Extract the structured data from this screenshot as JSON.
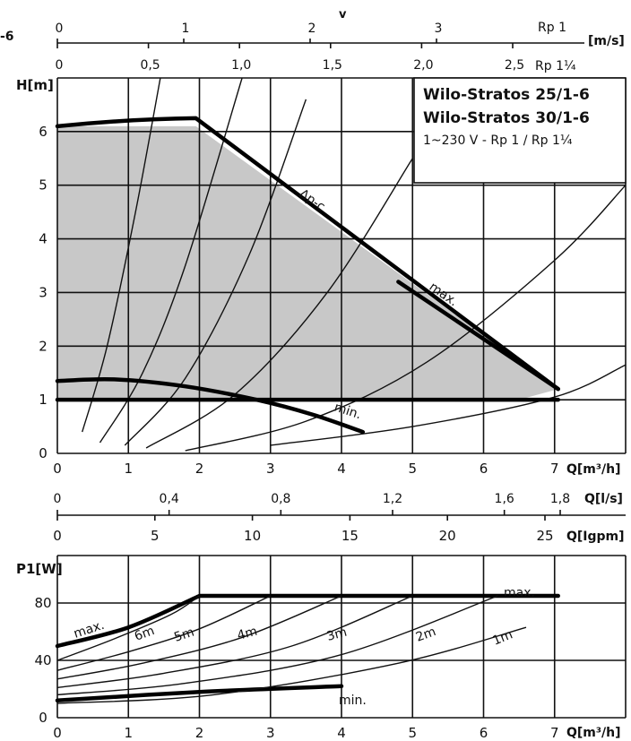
{
  "page_title_fragment": "-6",
  "velocity": {
    "symbol": "v",
    "unit": "[m/s]",
    "rp1": {
      "label": "Rp 1",
      "ticks": [
        "0",
        "1",
        "2",
        "3"
      ],
      "values": [
        0,
        1,
        2,
        3
      ]
    },
    "rp114": {
      "label": "Rp 1¼",
      "ticks": [
        "0",
        "0,5",
        "1,0",
        "1,5",
        "2,0",
        "2,5"
      ],
      "values": [
        0,
        0.5,
        1.0,
        1.5,
        2.0,
        2.5
      ]
    }
  },
  "legend_box": {
    "line1": "Wilo-Stratos 25/1-6",
    "line2": "Wilo-Stratos 30/1-6",
    "line3": "1~230 V - Rp 1 / Rp 1¼"
  },
  "flow_ls_axis": {
    "unit": "Q[l/s]",
    "ticks": [
      "0",
      "0,4",
      "0,8",
      "1,2",
      "1,6",
      "1,8"
    ],
    "values": [
      0,
      0.4,
      0.8,
      1.2,
      1.6,
      1.8
    ]
  },
  "flow_igpm_axis": {
    "unit": "Q[Igpm]",
    "ticks": [
      "0",
      "5",
      "10",
      "15",
      "20",
      "25"
    ],
    "values": [
      0,
      5,
      10,
      15,
      20,
      25
    ]
  },
  "chart_data": [
    {
      "type": "line",
      "xlabel": "Q[m³/h]",
      "ylabel": "H[m]",
      "xlim": [
        0,
        8
      ],
      "ylim": [
        0,
        7
      ],
      "x_ticks": [
        "0",
        "1",
        "2",
        "3",
        "4",
        "5",
        "6",
        "7"
      ],
      "y_ticks": [
        "0",
        "1",
        "2",
        "3",
        "4",
        "5",
        "6"
      ],
      "grid": true,
      "shaded_operating_area": [
        [
          0,
          6.1
        ],
        [
          1.95,
          6.1
        ],
        [
          7.05,
          1.2
        ],
        [
          6.5,
          1.0
        ],
        [
          0,
          1.0
        ]
      ],
      "series": [
        {
          "name": "Δp-c",
          "x": [
            0,
            1.0,
            1.95,
            3.5,
            7.05
          ],
          "y": [
            6.1,
            6.2,
            6.25,
            4.6,
            1.2
          ]
        },
        {
          "name": "max.",
          "x": [
            4.8,
            7.05
          ],
          "y": [
            3.2,
            1.2
          ]
        },
        {
          "name": "min.",
          "x": [
            0,
            0.8,
            1.8,
            2.8,
            3.6,
            4.3
          ],
          "y": [
            1.35,
            1.38,
            1.25,
            1.0,
            0.72,
            0.4
          ]
        },
        {
          "name": "",
          "x": [
            0,
            7.05
          ],
          "y": [
            1.0,
            1.0
          ]
        }
      ],
      "system_curves": [
        {
          "x": [
            0.35,
            0.7,
            1.1,
            1.45
          ],
          "y": [
            0.4,
            2.0,
            4.5,
            7.0
          ]
        },
        {
          "x": [
            0.6,
            1.2,
            1.8,
            2.6
          ],
          "y": [
            0.2,
            1.5,
            3.5,
            7.0
          ]
        },
        {
          "x": [
            0.95,
            1.8,
            2.7,
            3.5
          ],
          "y": [
            0.15,
            1.4,
            3.7,
            6.6
          ]
        },
        {
          "x": [
            1.25,
            2.5,
            3.8,
            5.0
          ],
          "y": [
            0.1,
            1.1,
            3.0,
            5.5
          ]
        },
        {
          "x": [
            1.8,
            3.5,
            5.2,
            7.0,
            8.0
          ],
          "y": [
            0.05,
            0.6,
            1.7,
            3.6,
            5.0
          ]
        },
        {
          "x": [
            3.0,
            5.0,
            7.0,
            8.0
          ],
          "y": [
            0.15,
            0.5,
            1.05,
            1.65
          ]
        }
      ],
      "annotations": [
        "Δp-c",
        "max.",
        "min."
      ]
    },
    {
      "type": "line",
      "xlabel": "Q[m³/h]",
      "ylabel": "P1[W]",
      "xlim": [
        0,
        8
      ],
      "ylim": [
        0,
        110
      ],
      "x_ticks": [
        "0",
        "1",
        "2",
        "3",
        "4",
        "5",
        "6",
        "7"
      ],
      "y_ticks": [
        "0",
        "40",
        "80"
      ],
      "grid": true,
      "series": [
        {
          "name": "max.",
          "x": [
            0,
            1.0,
            2.0,
            7.05
          ],
          "y": [
            50,
            63,
            85,
            85
          ]
        },
        {
          "name": "min.",
          "x": [
            0,
            2.0,
            4.0
          ],
          "y": [
            12,
            18,
            22
          ]
        },
        {
          "name": "6m",
          "x": [
            0,
            0.8,
            1.6,
            2.0
          ],
          "y": [
            40,
            55,
            72,
            85
          ]
        },
        {
          "name": "5m",
          "x": [
            0,
            1.0,
            2.0,
            3.0
          ],
          "y": [
            33,
            46,
            62,
            85
          ]
        },
        {
          "name": "4m",
          "x": [
            0,
            1.2,
            2.6,
            4.0
          ],
          "y": [
            27,
            38,
            56,
            85
          ]
        },
        {
          "name": "3m",
          "x": [
            0,
            1.5,
            3.3,
            5.0
          ],
          "y": [
            21,
            31,
            50,
            85
          ]
        },
        {
          "name": "2m",
          "x": [
            0,
            1.8,
            4.0,
            6.2
          ],
          "y": [
            16,
            24,
            44,
            85
          ]
        },
        {
          "name": "1m",
          "x": [
            0,
            2.2,
            4.8,
            6.6
          ],
          "y": [
            10,
            16,
            38,
            63
          ]
        }
      ],
      "annotations": [
        "max.",
        "min.",
        "6m",
        "5m",
        "4m",
        "3m",
        "2m",
        "1m"
      ]
    }
  ]
}
